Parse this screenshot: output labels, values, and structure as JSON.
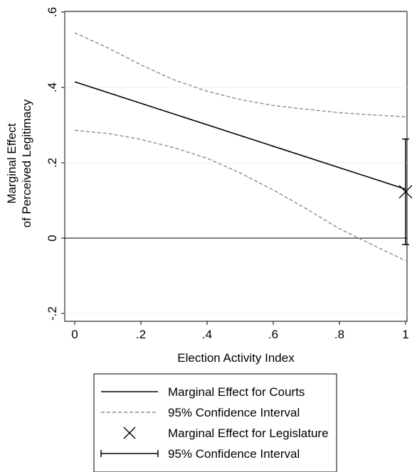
{
  "chart_data": {
    "type": "line",
    "xlabel": "Election Activity Index",
    "ylabel_lines": [
      "Marginal Effect",
      "of Perceived Legitimacy"
    ],
    "xlim": [
      0,
      1
    ],
    "ylim": [
      -0.2,
      0.6
    ],
    "xticks": [
      0,
      0.2,
      0.4,
      0.6,
      0.8,
      1
    ],
    "xtick_labels": [
      "0",
      ".2",
      ".4",
      ".6",
      ".8",
      "1"
    ],
    "yticks": [
      -0.2,
      0,
      0.2,
      0.4,
      0.6
    ],
    "ytick_labels": [
      "-.2",
      "0",
      ".2",
      ".4",
      ".6"
    ],
    "grid": true,
    "reference_line_y": 0,
    "legend_position": "bottom",
    "series": [
      {
        "name": "Marginal Effect for Courts",
        "style": "solid",
        "color": "#000000",
        "x": [
          0,
          1
        ],
        "y": [
          0.415,
          0.13
        ]
      },
      {
        "name": "95% Confidence Interval",
        "style": "dashed",
        "color": "#8c8c8c",
        "x": [
          0,
          0.1,
          0.2,
          0.3,
          0.4,
          0.5,
          0.6,
          0.7,
          0.8,
          0.9,
          1.0
        ],
        "y": [
          0.545,
          0.505,
          0.46,
          0.42,
          0.39,
          0.368,
          0.352,
          0.342,
          0.333,
          0.327,
          0.322
        ]
      },
      {
        "name": "95% Confidence Interval",
        "style": "dashed",
        "color": "#8c8c8c",
        "x": [
          0,
          0.1,
          0.2,
          0.3,
          0.4,
          0.5,
          0.6,
          0.7,
          0.8,
          0.9,
          1.0
        ],
        "y": [
          0.286,
          0.278,
          0.262,
          0.24,
          0.212,
          0.173,
          0.128,
          0.078,
          0.025,
          -0.018,
          -0.06
        ]
      }
    ],
    "point": {
      "name": "Marginal Effect for Legislature",
      "x": 1,
      "y": 0.123,
      "marker": "x"
    },
    "errorbar": {
      "name": "95% Confidence Interval",
      "x": 1,
      "low": -0.017,
      "high": 0.263
    },
    "legend": [
      "Marginal Effect for Courts",
      "95% Confidence Interval",
      "Marginal Effect for Legislature",
      "95% Confidence Interval"
    ]
  }
}
